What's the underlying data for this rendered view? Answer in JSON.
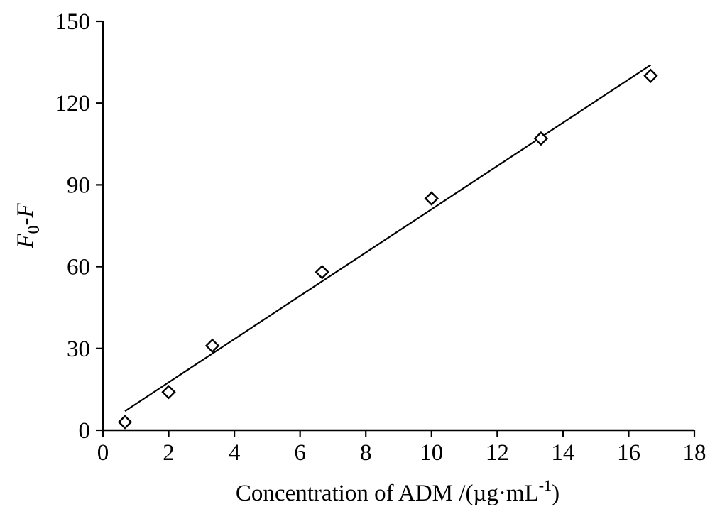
{
  "chart_data": {
    "type": "scatter",
    "xlabel_main": "Concentration of ADM /(µg·mL",
    "xlabel_sup": "-1",
    "xlabel_close": ")",
    "ylabel_main": "F",
    "ylabel_sub": "0",
    "ylabel_rest": "-F",
    "xlim": [
      0,
      18
    ],
    "ylim": [
      0,
      150
    ],
    "x_ticks": [
      0,
      2,
      4,
      6,
      8,
      10,
      12,
      14,
      16,
      18
    ],
    "y_ticks": [
      0,
      30,
      60,
      90,
      120,
      150
    ],
    "grid": false,
    "marker": "open-diamond",
    "series": [
      {
        "x": [
          0.67,
          2.0,
          3.33,
          6.67,
          10.0,
          13.33,
          16.67
        ],
        "y": [
          3,
          14,
          31,
          58,
          85,
          107,
          130
        ]
      }
    ],
    "fit_line": {
      "x": [
        0.67,
        16.67
      ],
      "y": [
        7,
        134
      ]
    }
  }
}
